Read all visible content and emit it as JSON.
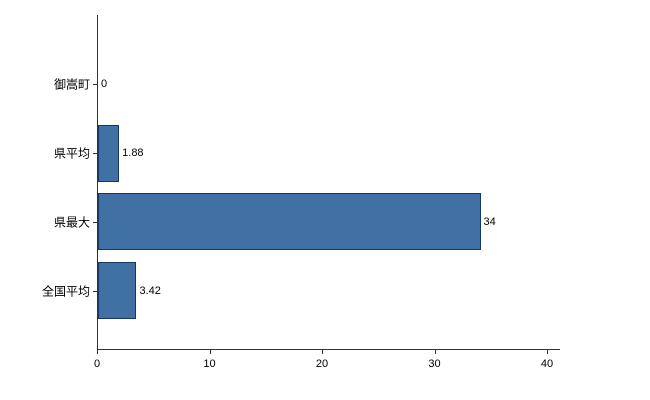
{
  "chart_data": {
    "type": "bar",
    "orientation": "horizontal",
    "title": "",
    "xlabel": "",
    "ylabel": "",
    "categories": [
      "御嵩町",
      "県平均",
      "県最大",
      "全国平均"
    ],
    "values": [
      0,
      1.88,
      34,
      3.42
    ],
    "value_labels": [
      "0",
      "1.88",
      "34",
      "3.42"
    ],
    "xlim": [
      0,
      40
    ],
    "x_ticks": [
      0,
      10,
      20,
      30,
      40
    ],
    "grid": false,
    "legend": "none",
    "colors": {
      "bar_fill": "#4170a4",
      "bar_border": "#17375e",
      "axis": "#333333",
      "text": "#000000",
      "background": "#ffffff"
    }
  }
}
